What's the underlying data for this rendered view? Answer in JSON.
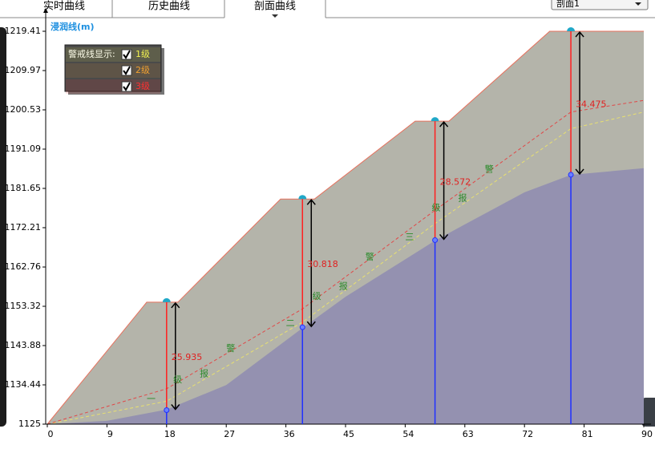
{
  "tabs": [
    "实时曲线",
    "历史曲线",
    "剖面曲线"
  ],
  "section_select": "剖面1",
  "chart_data": {
    "type": "area",
    "y_label": "浸润线(m)",
    "xlim": [
      0,
      90
    ],
    "xticks": [
      0,
      9,
      18,
      27,
      36,
      45,
      54,
      63,
      72,
      81,
      90
    ],
    "ylim": [
      1125,
      1219.41
    ],
    "yticks": [
      1125,
      1134.44,
      1143.88,
      1153.32,
      1162.76,
      1172.21,
      1181.65,
      1191.09,
      1200.53,
      1209.97,
      1219.41
    ],
    "series": [
      {
        "color": "#b4b4aa",
        "stroke": "#e8705c",
        "x": [
          0,
          15,
          19.7,
          35.2,
          40.3,
          55.5,
          60.6,
          75.8,
          90
        ],
        "values": [
          1125,
          1154.3,
          1154.3,
          1179.1,
          1179.1,
          1197.8,
          1197.8,
          1219.41,
          1219.41
        ]
      },
      {
        "color": "#9491b0",
        "x": [
          0,
          9,
          18,
          27,
          38.5,
          45,
          58.5,
          63,
          72,
          79,
          90
        ],
        "values": [
          1125,
          1125.8,
          1128.5,
          1134.4,
          1148.1,
          1155.6,
          1169.1,
          1173,
          1180.7,
          1184.9,
          1186.5
        ]
      }
    ],
    "warning_lines": [
      {
        "color": "#e8e070",
        "x": [
          0,
          18,
          38.5,
          58.5,
          79,
          90
        ],
        "values": [
          1125,
          1130.5,
          1149.5,
          1173.2,
          1196,
          1200
        ]
      },
      {
        "color": "#e04848",
        "x": [
          0,
          18,
          38.5,
          58.5,
          79,
          90
        ],
        "values": [
          1125,
          1133.5,
          1152.7,
          1176.4,
          1200,
          1202.8
        ]
      }
    ],
    "monitor_points": {
      "x": [
        18,
        38.5,
        58.5,
        79
      ],
      "depth": [
        25.935,
        30.818,
        28.572,
        34.475
      ]
    },
    "annotations": [
      "一级报警",
      "二级报警",
      "三级报警"
    ],
    "legend": {
      "title": "警戒线显示:",
      "items": [
        {
          "label": "1级",
          "color": "#f0f050"
        },
        {
          "label": "2级",
          "color": "#f0a030"
        },
        {
          "label": "3级",
          "color": "#ff3030"
        }
      ]
    }
  }
}
